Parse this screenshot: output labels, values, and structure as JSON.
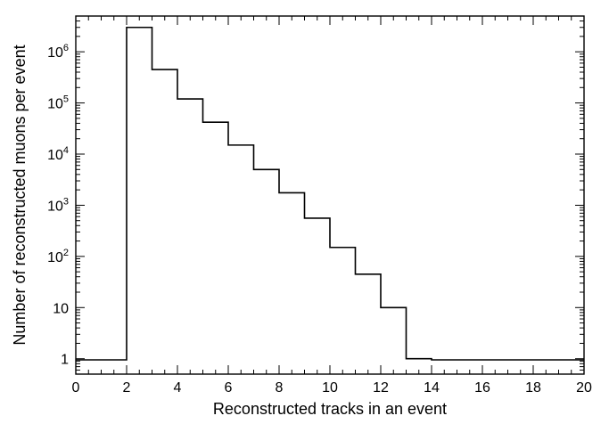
{
  "chart_data": {
    "type": "bar",
    "histogram": true,
    "xlabel": "Reconstructed tracks in an event",
    "ylabel": "Number of reconstructed muons per event",
    "xlim": [
      0,
      20
    ],
    "ylim": [
      0.5,
      5000000
    ],
    "yscale": "log",
    "grid": false,
    "x_ticks": [
      0,
      2,
      4,
      6,
      8,
      10,
      12,
      14,
      16,
      18,
      20
    ],
    "x_tick_labels": [
      "0",
      "2",
      "4",
      "6",
      "8",
      "10",
      "12",
      "14",
      "16",
      "18",
      "20"
    ],
    "y_ticks": [
      {
        "value": 1,
        "base": "1",
        "exp": ""
      },
      {
        "value": 10,
        "base": "10",
        "exp": ""
      },
      {
        "value": 100,
        "base": "10",
        "exp": "2"
      },
      {
        "value": 1000,
        "base": "10",
        "exp": "3"
      },
      {
        "value": 10000,
        "base": "10",
        "exp": "4"
      },
      {
        "value": 100000,
        "base": "10",
        "exp": "5"
      },
      {
        "value": 1000000,
        "base": "10",
        "exp": "6"
      }
    ],
    "bins": [
      {
        "x0": 2,
        "x1": 3,
        "value": 3000000
      },
      {
        "x0": 3,
        "x1": 4,
        "value": 450000
      },
      {
        "x0": 4,
        "x1": 5,
        "value": 120000
      },
      {
        "x0": 5,
        "x1": 6,
        "value": 42000
      },
      {
        "x0": 6,
        "x1": 7,
        "value": 15000
      },
      {
        "x0": 7,
        "x1": 8,
        "value": 5000
      },
      {
        "x0": 8,
        "x1": 9,
        "value": 1750
      },
      {
        "x0": 9,
        "x1": 10,
        "value": 560
      },
      {
        "x0": 10,
        "x1": 11,
        "value": 150
      },
      {
        "x0": 11,
        "x1": 12,
        "value": 45
      },
      {
        "x0": 12,
        "x1": 13,
        "value": 10
      },
      {
        "x0": 13,
        "x1": 14,
        "value": 1
      }
    ],
    "line_color": "#000000"
  }
}
